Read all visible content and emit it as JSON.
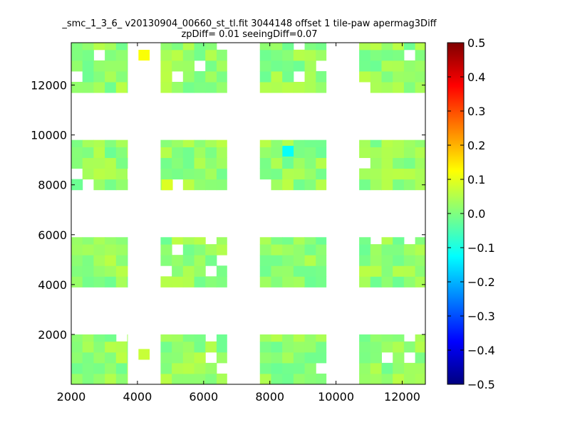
{
  "chart_data": {
    "type": "heatmap",
    "title": "_smc_1_3_6_ v20130904_00660_st_tl.fit 3044148 offset 1 tile-paw apermag3Diff",
    "subtitle": "zpDiff= 0.01 seeingDiff=0.07",
    "xlabel": "",
    "ylabel": "",
    "xlim": [
      2000,
      12700
    ],
    "ylim": [
      0,
      13700
    ],
    "xticks": [
      2000,
      4000,
      6000,
      8000,
      10000,
      12000
    ],
    "yticks": [
      2000,
      4000,
      6000,
      8000,
      10000,
      12000
    ],
    "colormap": "jet",
    "clim": [
      -0.5,
      0.5
    ],
    "colorbar_ticks": [
      0.5,
      0.4,
      0.3,
      0.2,
      0.1,
      0.0,
      -0.1,
      -0.2,
      -0.3,
      -0.4,
      -0.5
    ],
    "grid": false,
    "cell_size": [
      338,
      430
    ],
    "blocks": {
      "x_ranges": [
        [
          2000,
          3700
        ],
        [
          4700,
          6700
        ],
        [
          7700,
          9700
        ],
        [
          10700,
          12700
        ]
      ],
      "y_ranges": [
        [
          0,
          2000
        ],
        [
          3900,
          5900
        ],
        [
          7800,
          9800
        ],
        [
          11700,
          13700
        ]
      ],
      "typical_value": 0.02
    },
    "notable_cells": [
      {
        "x": 4200,
        "y": 13200,
        "value": 0.12
      },
      {
        "x": 8550,
        "y": 9350,
        "value": -0.12
      },
      {
        "x": 4900,
        "y": 8000,
        "value": 0.09
      },
      {
        "x": 4200,
        "y": 1200,
        "value": 0.07
      }
    ]
  }
}
